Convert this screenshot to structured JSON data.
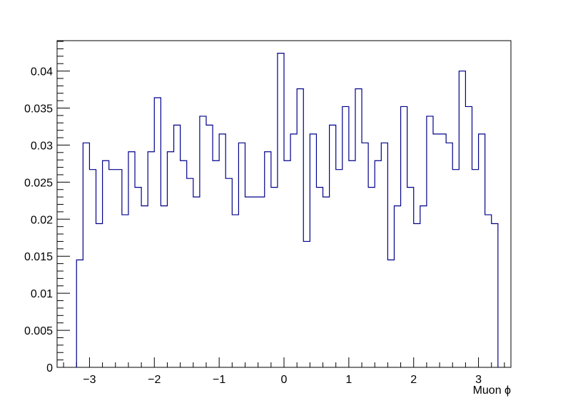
{
  "chart_data": {
    "type": "histogram",
    "xlabel": "Muon ϕ",
    "ylabel": "",
    "title": "",
    "xlim": [
      -3.5,
      3.5
    ],
    "ylim": [
      0,
      0.0441
    ],
    "grid": false,
    "legend": "none",
    "line_color": "#00008b",
    "bin_width": 0.1,
    "bin_edges_start": -3.2,
    "values": [
      0.0145,
      0.0303,
      0.0267,
      0.0194,
      0.0279,
      0.0267,
      0.0267,
      0.0206,
      0.0291,
      0.0243,
      0.0218,
      0.0291,
      0.0364,
      0.0218,
      0.0291,
      0.0327,
      0.0279,
      0.0255,
      0.023,
      0.0339,
      0.0327,
      0.0279,
      0.0315,
      0.0255,
      0.0206,
      0.0303,
      0.023,
      0.023,
      0.023,
      0.0291,
      0.0243,
      0.0424,
      0.0279,
      0.0315,
      0.0376,
      0.017,
      0.0315,
      0.0243,
      0.023,
      0.0327,
      0.0267,
      0.0352,
      0.0279,
      0.0376,
      0.0303,
      0.0243,
      0.0279,
      0.0303,
      0.0145,
      0.0218,
      0.0352,
      0.0243,
      0.0194,
      0.0218,
      0.0339,
      0.0315,
      0.0315,
      0.0303,
      0.0267,
      0.04,
      0.0352,
      0.0267,
      0.0315,
      0.0206,
      0.0194
    ],
    "x_ticks": [
      -3,
      -2,
      -1,
      0,
      1,
      2,
      3
    ],
    "x_tick_labels": [
      "−3",
      "−2",
      "−1",
      "0",
      "1",
      "2",
      "3"
    ],
    "y_ticks": [
      0,
      0.005,
      0.01,
      0.015,
      0.02,
      0.025,
      0.03,
      0.035,
      0.04
    ],
    "y_tick_labels": [
      "0",
      "0.005",
      "0.01",
      "0.015",
      "0.02",
      "0.025",
      "0.03",
      "0.035",
      "0.04"
    ]
  }
}
